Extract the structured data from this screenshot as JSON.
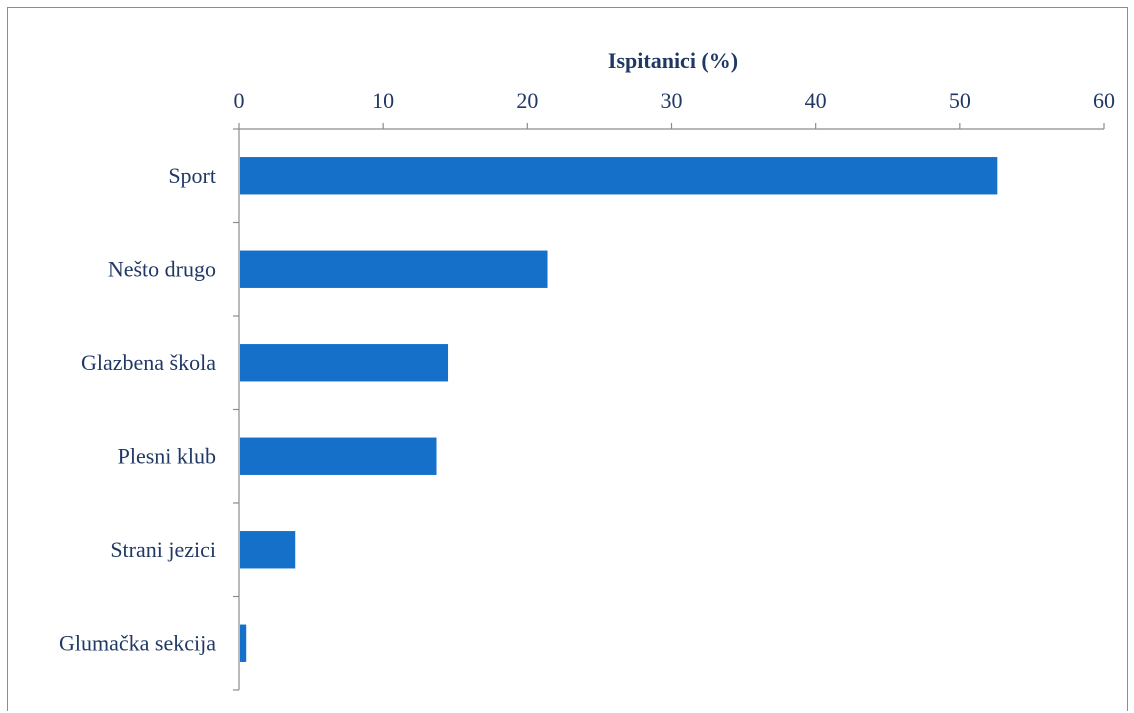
{
  "chart_data": {
    "type": "bar",
    "orientation": "horizontal",
    "xlabel": "Ispitanici (%)",
    "xlabel_position": "top",
    "xlim": [
      0,
      60
    ],
    "xticks": [
      0,
      10,
      20,
      30,
      40,
      50,
      60
    ],
    "categories": [
      "Sport",
      "Nešto drugo",
      "Glazbena škola",
      "Plesni klub",
      "Strani jezici",
      "Glumačka sekcija"
    ],
    "values": [
      52.6,
      21.4,
      14.5,
      13.7,
      3.9,
      0.5
    ],
    "bar_color": "#1470c9",
    "text_color": "#1f3864",
    "grid": false
  }
}
